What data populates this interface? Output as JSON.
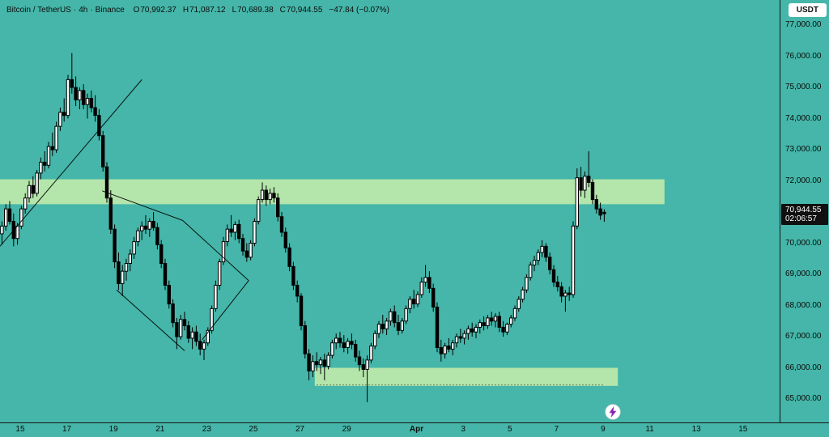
{
  "legend": {
    "symbol": "Bitcoin / TetherUS",
    "sep": "·",
    "interval": "4h",
    "exchange": "Binance",
    "o_label": "O",
    "o": "70,992.37",
    "h_label": "H",
    "h": "71,087.12",
    "l_label": "L",
    "l": "70,689.38",
    "c_label": "C",
    "c": "70,944.55",
    "change": "−47.84 (−0.07%)"
  },
  "toolbar": {
    "currency_label": "USDT"
  },
  "badge": {
    "price": "70,944.55",
    "countdown": "02:06:57"
  },
  "colors": {
    "background": "#45b6a9",
    "zone": "#bce8aa",
    "candle_up": "#ffffff",
    "candle_down": "#000000",
    "candle_border": "#000000",
    "trendline": "#000000",
    "axis_text": "#0b0b0b",
    "badge_bg": "#101010",
    "badge_text": "#ffffff",
    "bolt": "#8e24aa"
  },
  "chart_data": {
    "type": "candlestick",
    "symbol": "Bitcoin / TetherUS",
    "interval": "4h",
    "exchange": "Binance",
    "last_price": 70944.55,
    "y_axis": {
      "ticks": [
        {
          "label": "77,000.00",
          "value": 77000
        },
        {
          "label": "76,000.00",
          "value": 76000
        },
        {
          "label": "75,000.00",
          "value": 75000
        },
        {
          "label": "74,000.00",
          "value": 74000
        },
        {
          "label": "73,000.00",
          "value": 73000
        },
        {
          "label": "72,000.00",
          "value": 72000
        },
        {
          "label": "71,000.00",
          "value": 71000
        },
        {
          "label": "70,000.00",
          "value": 70000
        },
        {
          "label": "69,000.00",
          "value": 69000
        },
        {
          "label": "68,000.00",
          "value": 68000
        },
        {
          "label": "67,000.00",
          "value": 67000
        },
        {
          "label": "66,000.00",
          "value": 66000
        },
        {
          "label": "65,000.00",
          "value": 65000
        }
      ]
    },
    "x_axis": {
      "month_label": "Apr",
      "ticks": [
        {
          "label": "15",
          "index": 4.7
        },
        {
          "label": "17",
          "index": 16.7
        },
        {
          "label": "19",
          "index": 28.7
        },
        {
          "label": "21",
          "index": 40.7
        },
        {
          "label": "23",
          "index": 52.7
        },
        {
          "label": "25",
          "index": 64.7
        },
        {
          "label": "27",
          "index": 76.7
        },
        {
          "label": "29",
          "index": 88.7
        },
        {
          "label": "Apr",
          "index": 106.7
        },
        {
          "label": "3",
          "index": 118.7
        },
        {
          "label": "5",
          "index": 130.7
        },
        {
          "label": "7",
          "index": 142.7
        },
        {
          "label": "9",
          "index": 154.7
        },
        {
          "label": "11",
          "index": 166.7
        },
        {
          "label": "13",
          "index": 178.7
        },
        {
          "label": "15",
          "index": 190.7
        }
      ]
    },
    "zones": [
      {
        "price_top": 72050,
        "price_bottom": 71250,
        "start_index": -1,
        "end_index": 170.5
      },
      {
        "price_top": 66000,
        "price_bottom": 65420,
        "start_index": 80.5,
        "end_index": 158.5
      }
    ],
    "trendlines": [
      {
        "i1": -0.5,
        "p1": 69900,
        "i2": 36,
        "p2": 75250
      },
      {
        "i1": 25.8,
        "p1": 71680,
        "i2": 46.5,
        "p2": 70730
      },
      {
        "i1": 29.5,
        "p1": 68500,
        "i2": 47,
        "p2": 66550
      },
      {
        "i1": 46.5,
        "p1": 70730,
        "i2": 63.5,
        "p2": 68800
      },
      {
        "i1": 51.5,
        "p1": 66900,
        "i2": 63.5,
        "p2": 68800
      }
    ],
    "dashed_line": {
      "price": 65450,
      "start_index": 81,
      "end_index": 155
    },
    "candles": [
      [
        70300,
        70700,
        69950,
        70550
      ],
      [
        70550,
        71250,
        70400,
        71100
      ],
      [
        71100,
        71350,
        70600,
        70700
      ],
      [
        70700,
        70950,
        69900,
        70150
      ],
      [
        70150,
        70650,
        69950,
        70550
      ],
      [
        70550,
        71200,
        70450,
        71100
      ],
      [
        71100,
        71600,
        70950,
        71450
      ],
      [
        71450,
        72000,
        71300,
        71850
      ],
      [
        71850,
        72150,
        71450,
        71600
      ],
      [
        71600,
        72350,
        71500,
        72250
      ],
      [
        72250,
        72750,
        72050,
        72600
      ],
      [
        72600,
        72950,
        72300,
        72500
      ],
      [
        72500,
        73250,
        72400,
        73100
      ],
      [
        73100,
        73550,
        72800,
        73000
      ],
      [
        73000,
        73900,
        72900,
        73750
      ],
      [
        73750,
        74350,
        73600,
        74200
      ],
      [
        74200,
        74650,
        73900,
        74100
      ],
      [
        74100,
        75400,
        74000,
        75250
      ],
      [
        75250,
        76100,
        74800,
        75000
      ],
      [
        75000,
        75350,
        74400,
        74600
      ],
      [
        74600,
        75000,
        74300,
        74900
      ],
      [
        74900,
        75100,
        74300,
        74450
      ],
      [
        74450,
        74800,
        74000,
        74650
      ],
      [
        74650,
        74900,
        74200,
        74350
      ],
      [
        74350,
        74750,
        73900,
        74100
      ],
      [
        74100,
        74300,
        73300,
        73450
      ],
      [
        73450,
        73600,
        72300,
        72450
      ],
      [
        72450,
        72600,
        71300,
        71450
      ],
      [
        71450,
        71700,
        70300,
        70450
      ],
      [
        70450,
        70600,
        69200,
        69400
      ],
      [
        69400,
        69700,
        68500,
        68700
      ],
      [
        68700,
        69300,
        68300,
        69100
      ],
      [
        69100,
        69500,
        68800,
        69350
      ],
      [
        69350,
        69800,
        69100,
        69650
      ],
      [
        69650,
        70200,
        69500,
        70050
      ],
      [
        70050,
        70500,
        69900,
        70400
      ],
      [
        70400,
        70700,
        70100,
        70550
      ],
      [
        70550,
        70900,
        70300,
        70450
      ],
      [
        70450,
        70800,
        70200,
        70700
      ],
      [
        70700,
        71000,
        70400,
        70500
      ],
      [
        70500,
        70650,
        69800,
        69950
      ],
      [
        69950,
        70100,
        69200,
        69350
      ],
      [
        69350,
        69500,
        68500,
        68650
      ],
      [
        68650,
        68800,
        67900,
        68050
      ],
      [
        68050,
        68200,
        67300,
        67450
      ],
      [
        67450,
        67600,
        66600,
        67000
      ],
      [
        67000,
        67700,
        66900,
        67550
      ],
      [
        67550,
        67800,
        67200,
        67350
      ],
      [
        67350,
        67500,
        66800,
        66950
      ],
      [
        66950,
        67300,
        66600,
        67150
      ],
      [
        67150,
        67350,
        66700,
        66850
      ],
      [
        66850,
        67100,
        66400,
        66600
      ],
      [
        66600,
        66900,
        66250,
        66800
      ],
      [
        66800,
        67300,
        66700,
        67200
      ],
      [
        67200,
        68000,
        67100,
        67900
      ],
      [
        67900,
        68800,
        67800,
        68650
      ],
      [
        68650,
        69500,
        68500,
        69400
      ],
      [
        69400,
        70200,
        69300,
        70050
      ],
      [
        70050,
        70600,
        69900,
        70450
      ],
      [
        70450,
        70900,
        70200,
        70350
      ],
      [
        70350,
        70700,
        70100,
        70600
      ],
      [
        70600,
        70750,
        70000,
        70150
      ],
      [
        70150,
        70300,
        69600,
        69750
      ],
      [
        69750,
        70000,
        69400,
        69550
      ],
      [
        69550,
        70100,
        69450,
        70000
      ],
      [
        70000,
        70800,
        69900,
        70700
      ],
      [
        70700,
        71500,
        70600,
        71400
      ],
      [
        71400,
        71950,
        71300,
        71700
      ],
      [
        71700,
        71850,
        71200,
        71400
      ],
      [
        71400,
        71750,
        71250,
        71600
      ],
      [
        71600,
        71800,
        71300,
        71450
      ],
      [
        71450,
        71600,
        70700,
        70850
      ],
      [
        70850,
        71000,
        70200,
        70350
      ],
      [
        70350,
        70500,
        69700,
        69850
      ],
      [
        69850,
        70000,
        69100,
        69250
      ],
      [
        69250,
        69400,
        68500,
        68650
      ],
      [
        68650,
        68800,
        68100,
        68300
      ],
      [
        68300,
        68400,
        67200,
        67350
      ],
      [
        67350,
        67500,
        66300,
        66450
      ],
      [
        66450,
        66600,
        65600,
        65900
      ],
      [
        65900,
        66400,
        65700,
        66200
      ],
      [
        66200,
        66500,
        65900,
        66100
      ],
      [
        66100,
        66350,
        65800,
        66250
      ],
      [
        66250,
        66450,
        65600,
        66050
      ],
      [
        66050,
        66500,
        65950,
        66400
      ],
      [
        66400,
        66900,
        66300,
        66800
      ],
      [
        66800,
        67100,
        66600,
        66950
      ],
      [
        66950,
        67150,
        66650,
        66800
      ],
      [
        66800,
        67050,
        66500,
        66650
      ],
      [
        66650,
        66950,
        66450,
        66850
      ],
      [
        66850,
        67100,
        66600,
        66750
      ],
      [
        66750,
        66900,
        66200,
        66350
      ],
      [
        66350,
        66550,
        65900,
        66100
      ],
      [
        66100,
        66300,
        65700,
        65950
      ],
      [
        65950,
        66400,
        64900,
        66250
      ],
      [
        66250,
        66800,
        66150,
        66700
      ],
      [
        66700,
        67200,
        66600,
        67100
      ],
      [
        67100,
        67500,
        66950,
        67400
      ],
      [
        67400,
        67700,
        67100,
        67250
      ],
      [
        67250,
        67600,
        67050,
        67500
      ],
      [
        67500,
        67900,
        67350,
        67800
      ],
      [
        67800,
        68000,
        67300,
        67450
      ],
      [
        67450,
        67700,
        67050,
        67200
      ],
      [
        67200,
        67600,
        67100,
        67500
      ],
      [
        67500,
        68000,
        67400,
        67900
      ],
      [
        67900,
        68300,
        67750,
        68200
      ],
      [
        68200,
        68500,
        67900,
        68050
      ],
      [
        68050,
        68450,
        67950,
        68350
      ],
      [
        68350,
        68900,
        68250,
        68750
      ],
      [
        68750,
        69300,
        68600,
        68900
      ],
      [
        68900,
        69100,
        68400,
        68550
      ],
      [
        68550,
        68700,
        67800,
        67950
      ],
      [
        67950,
        68100,
        66500,
        66650
      ],
      [
        66650,
        66900,
        66200,
        66450
      ],
      [
        66450,
        66800,
        66300,
        66700
      ],
      [
        66700,
        66950,
        66500,
        66600
      ],
      [
        66600,
        66900,
        66400,
        66800
      ],
      [
        66800,
        67100,
        66650,
        67000
      ],
      [
        67000,
        67250,
        66800,
        66950
      ],
      [
        66950,
        67200,
        66750,
        67100
      ],
      [
        67100,
        67350,
        66900,
        67250
      ],
      [
        67250,
        67450,
        67000,
        67150
      ],
      [
        67150,
        67400,
        66950,
        67300
      ],
      [
        67300,
        67550,
        67100,
        67450
      ],
      [
        67450,
        67650,
        67200,
        67350
      ],
      [
        67350,
        67700,
        67250,
        67600
      ],
      [
        67600,
        67800,
        67350,
        67500
      ],
      [
        67500,
        67750,
        67300,
        67650
      ],
      [
        67650,
        67800,
        67150,
        67300
      ],
      [
        67300,
        67500,
        67000,
        67150
      ],
      [
        67150,
        67450,
        67050,
        67400
      ],
      [
        67400,
        67700,
        67300,
        67600
      ],
      [
        67600,
        68000,
        67500,
        67900
      ],
      [
        67900,
        68300,
        67800,
        68200
      ],
      [
        68200,
        68600,
        68100,
        68500
      ],
      [
        68500,
        69000,
        68400,
        68900
      ],
      [
        68900,
        69400,
        68800,
        69300
      ],
      [
        69300,
        69600,
        69100,
        69450
      ],
      [
        69450,
        69800,
        69300,
        69700
      ],
      [
        69700,
        70100,
        69550,
        69900
      ],
      [
        69900,
        70000,
        69400,
        69550
      ],
      [
        69550,
        69700,
        69000,
        69150
      ],
      [
        69150,
        69300,
        68600,
        68750
      ],
      [
        68750,
        68950,
        68450,
        68600
      ],
      [
        68600,
        68750,
        68100,
        68300
      ],
      [
        68300,
        68500,
        67800,
        68400
      ],
      [
        68400,
        68600,
        68150,
        68350
      ],
      [
        68350,
        70700,
        68250,
        70550
      ],
      [
        70550,
        72400,
        70450,
        72100
      ],
      [
        72100,
        72450,
        71500,
        71700
      ],
      [
        71700,
        72300,
        71450,
        72150
      ],
      [
        72150,
        72950,
        71800,
        71950
      ],
      [
        71950,
        72050,
        71250,
        71400
      ],
      [
        71400,
        71550,
        70950,
        71100
      ],
      [
        71100,
        71300,
        70750,
        70900
      ],
      [
        70992,
        71087,
        70689,
        70945
      ]
    ]
  }
}
